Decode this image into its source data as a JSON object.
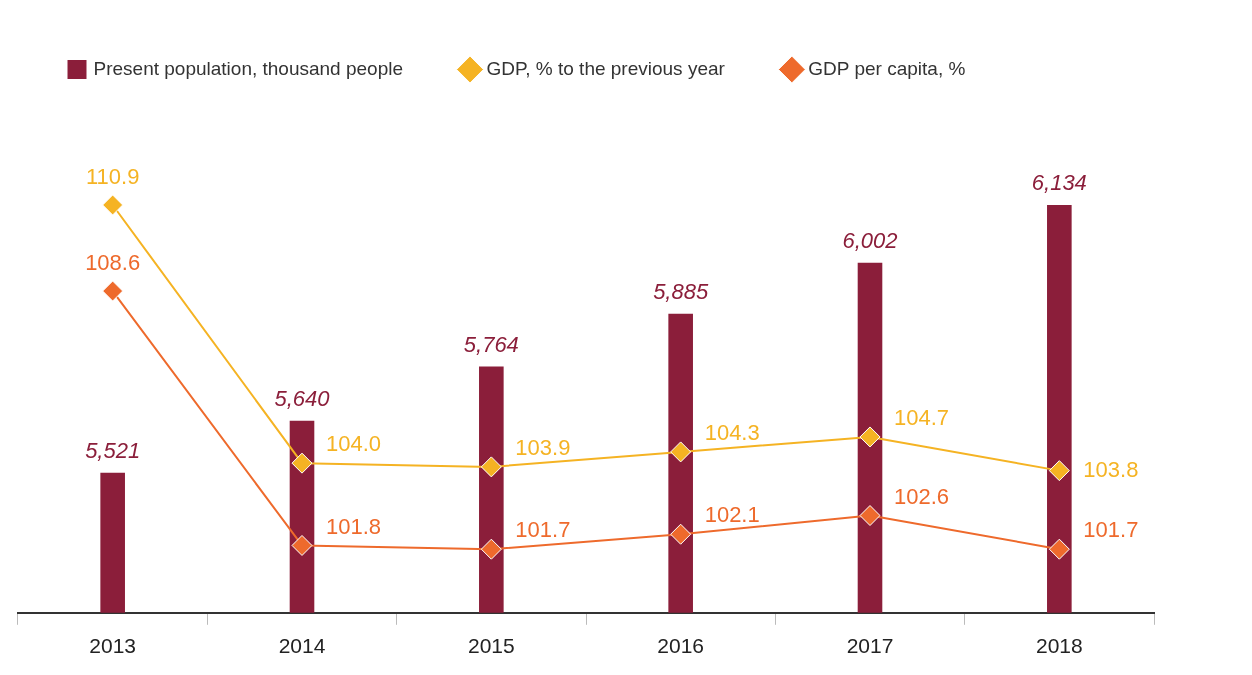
{
  "chart_data": {
    "type": "bar",
    "categories": [
      "2013",
      "2014",
      "2015",
      "2016",
      "2017",
      "2018"
    ],
    "series": [
      {
        "name": "Present population, thousand people",
        "color": "#8b1e3a",
        "values": [
          5521,
          5640,
          5764,
          5885,
          6002,
          6134
        ],
        "value_labels": [
          "5,521",
          "5,640",
          "5,764",
          "5,885",
          "6,002",
          "6,134"
        ]
      },
      {
        "name": "GDP, % to the previous year",
        "type": "line",
        "axis": "y2",
        "color": "#f5b323",
        "values": [
          110.9,
          104.0,
          103.9,
          104.3,
          104.7,
          103.8
        ],
        "value_labels": [
          "110.9",
          "104.0",
          "103.9",
          "104.3",
          "104.7",
          "103.8"
        ]
      },
      {
        "name": "GDP per capita, %",
        "type": "line",
        "axis": "y2",
        "color": "#ee6a2c",
        "values": [
          108.6,
          101.8,
          101.7,
          102.1,
          102.6,
          101.7
        ],
        "value_labels": [
          "108.6",
          "101.8",
          "101.7",
          "102.1",
          "102.6",
          "101.7"
        ]
      }
    ],
    "tick_labels": "x",
    "grid": false,
    "legend": "top",
    "marker": "diamond",
    "line_style": "solid"
  }
}
